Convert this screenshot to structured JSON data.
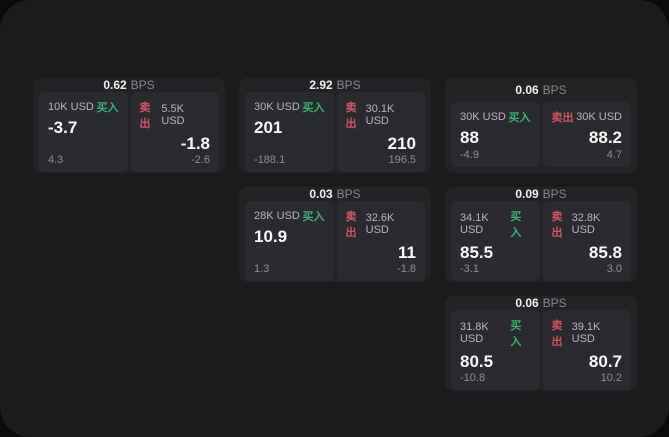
{
  "labels": {
    "bps_unit": "BPS",
    "buy": "买入",
    "sell": "卖出"
  },
  "colors": {
    "page_bg": "#0a0a0a",
    "container_bg": "#1a1b1d",
    "card_bg": "#222325",
    "panel_bg": "#2a2b2e",
    "buy_green": "#3eaf76",
    "sell_red": "#d05463"
  },
  "cards": [
    {
      "bps": "0.62",
      "grid": {
        "col": 1,
        "row": 1
      },
      "buy": {
        "amount": "10K USD",
        "value": "-3.7",
        "sub": "4.3"
      },
      "sell": {
        "amount": "5.5K USD",
        "value": "-1.8",
        "sub": "-2.6"
      }
    },
    {
      "bps": "2.92",
      "grid": {
        "col": 2,
        "row": 1
      },
      "buy": {
        "amount": "30K USD",
        "value": "201",
        "sub": "-188.1"
      },
      "sell": {
        "amount": "30.1K USD",
        "value": "210",
        "sub": "196.5"
      }
    },
    {
      "bps": "0.06",
      "grid": {
        "col": 3,
        "row": 1
      },
      "buy": {
        "amount": "30K USD",
        "value": "88",
        "sub": "-4.9"
      },
      "sell": {
        "amount": "30K USD",
        "value": "88.2",
        "sub": "4.7"
      }
    },
    {
      "bps": "0.03",
      "grid": {
        "col": 2,
        "row": 2
      },
      "buy": {
        "amount": "28K USD",
        "value": "10.9",
        "sub": "1.3"
      },
      "sell": {
        "amount": "32.6K USD",
        "value": "11",
        "sub": "-1.8"
      }
    },
    {
      "bps": "0.09",
      "grid": {
        "col": 3,
        "row": 2
      },
      "buy": {
        "amount": "34.1K USD",
        "value": "85.5",
        "sub": "-3.1"
      },
      "sell": {
        "amount": "32.8K USD",
        "value": "85.8",
        "sub": "3.0"
      }
    },
    {
      "bps": "0.06",
      "grid": {
        "col": 3,
        "row": 3
      },
      "buy": {
        "amount": "31.8K USD",
        "value": "80.5",
        "sub": "-10.8"
      },
      "sell": {
        "amount": "39.1K USD",
        "value": "80.7",
        "sub": "10.2"
      }
    }
  ]
}
